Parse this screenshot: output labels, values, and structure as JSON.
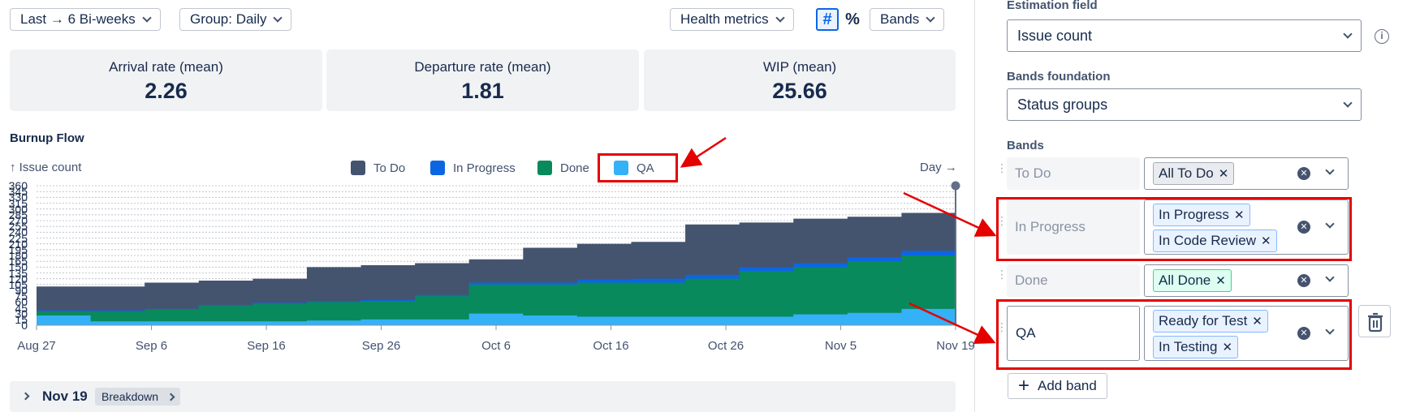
{
  "toolbar": {
    "range_label": "Last → 6 Bi-weeks",
    "group_label": "Group: Daily",
    "health_label": "Health metrics",
    "hash_label": "#",
    "percent_label": "%",
    "bands_label": "Bands"
  },
  "metrics": [
    {
      "label": "Arrival rate (mean)",
      "value": "2.26"
    },
    {
      "label": "Departure rate (mean)",
      "value": "1.81"
    },
    {
      "label": "WIP (mean)",
      "value": "25.66"
    }
  ],
  "chart_title": "Burnup Flow",
  "chart_data": {
    "type": "area",
    "ylabel": "↑ Issue count",
    "xlabel": "Day →",
    "yticks": [
      "0",
      "15",
      "30",
      "45",
      "60",
      "75",
      "90",
      "105",
      "120",
      "135",
      "150",
      "165",
      "180",
      "195",
      "210",
      "225",
      "240",
      "255",
      "270",
      "285",
      "300",
      "315",
      "330",
      "345",
      "360"
    ],
    "ylim": [
      0,
      360
    ],
    "x_tick_labels": [
      "Aug 27",
      "Sep 6",
      "Sep 16",
      "Sep 26",
      "Oct 6",
      "Oct 16",
      "Oct 26",
      "Nov 5",
      "Nov 19"
    ],
    "stacked": true,
    "legend_position": "top",
    "series": [
      {
        "name": "To Do",
        "color": "#44546f"
      },
      {
        "name": "In Progress",
        "color": "#0c66e4"
      },
      {
        "name": "Done",
        "color": "#098a5c"
      },
      {
        "name": "QA",
        "color": "#34b1f7"
      }
    ],
    "x_days": [
      0,
      5,
      10,
      15,
      20,
      25,
      30,
      35,
      40,
      45,
      50,
      55,
      60,
      65,
      70,
      75,
      80,
      85
    ],
    "cumulative_qa": [
      25,
      10,
      10,
      10,
      10,
      12,
      15,
      15,
      30,
      25,
      22,
      22,
      22,
      22,
      28,
      32,
      42,
      48
    ],
    "cumulative_done": [
      35,
      35,
      40,
      50,
      55,
      60,
      62,
      75,
      105,
      105,
      110,
      110,
      120,
      140,
      150,
      165,
      180,
      198
    ],
    "cumulative_in_progress": [
      38,
      38,
      42,
      52,
      58,
      62,
      65,
      78,
      110,
      110,
      118,
      120,
      130,
      150,
      160,
      175,
      192,
      210
    ],
    "cumulative_to_do": [
      100,
      100,
      110,
      115,
      120,
      150,
      155,
      160,
      170,
      200,
      210,
      215,
      260,
      265,
      275,
      280,
      290,
      290
    ]
  },
  "breakdown": {
    "date": "Nov 19",
    "button": "Breakdown"
  },
  "panel": {
    "estimation_label": "Estimation field",
    "estimation_value": "Issue count",
    "foundation_label": "Bands foundation",
    "foundation_value": "Status groups",
    "bands_label": "Bands",
    "bands": [
      {
        "name": "To Do",
        "tags": [
          "All To Do"
        ]
      },
      {
        "name": "In Progress",
        "tags": [
          "In Progress",
          "In Code Review"
        ]
      },
      {
        "name": "Done",
        "tags": [
          "All Done"
        ]
      },
      {
        "name": "QA",
        "tags": [
          "Ready for Test",
          "In Testing"
        ]
      }
    ],
    "add_band": "Add band"
  },
  "icons": {
    "clear": "clear-icon",
    "delete": "trash-icon",
    "info": "info-icon",
    "drag": "drag-handle-icon"
  }
}
